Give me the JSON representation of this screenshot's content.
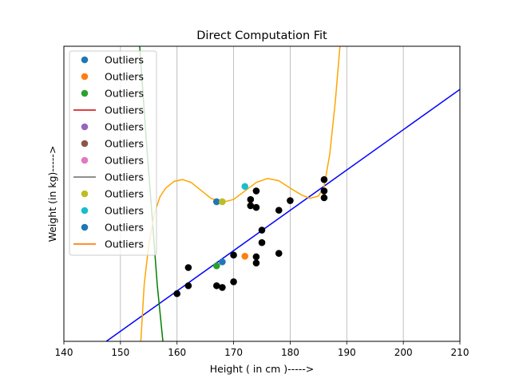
{
  "chart_data": {
    "type": "scatter",
    "title": "Direct Computation Fit",
    "xlabel": "Height ( in cm )----->",
    "ylabel": "Weight (in kg)----->",
    "xlim": [
      140,
      210
    ],
    "ylim": [
      30,
      82
    ],
    "xticks": [
      140,
      150,
      160,
      170,
      180,
      190,
      200,
      210
    ],
    "xtick_labels": [
      "140",
      "150",
      "160",
      "170",
      "180",
      "190",
      "200",
      "210"
    ],
    "yticks_visible": false,
    "grid": "vertical lines only",
    "legend": {
      "position": "top-left",
      "entries": [
        {
          "label": "Outliers",
          "kind": "marker",
          "color": "#1f77b4"
        },
        {
          "label": "Outliers",
          "kind": "marker",
          "color": "#ff7f0e"
        },
        {
          "label": "Outliers",
          "kind": "marker",
          "color": "#2ca02c"
        },
        {
          "label": "Outliers",
          "kind": "line",
          "color": "#d62728"
        },
        {
          "label": "Outliers",
          "kind": "marker",
          "color": "#9467bd"
        },
        {
          "label": "Outliers",
          "kind": "marker",
          "color": "#8c564b"
        },
        {
          "label": "Outliers",
          "kind": "marker",
          "color": "#e377c2"
        },
        {
          "label": "Outliers",
          "kind": "line",
          "color": "#7f7f7f"
        },
        {
          "label": "Outliers",
          "kind": "marker",
          "color": "#bcbd22"
        },
        {
          "label": "Outliers",
          "kind": "marker",
          "color": "#17becf"
        },
        {
          "label": "Outliers",
          "kind": "marker",
          "color": "#1f77b4"
        },
        {
          "label": "Outliers",
          "kind": "line",
          "color": "#ff7f0e"
        }
      ]
    },
    "points": [
      {
        "x": 160,
        "y": 38.4,
        "color": "#000000"
      },
      {
        "x": 162,
        "y": 39.8,
        "color": "#000000"
      },
      {
        "x": 162,
        "y": 43.0,
        "color": "#000000"
      },
      {
        "x": 167,
        "y": 39.8,
        "color": "#000000"
      },
      {
        "x": 168,
        "y": 39.5,
        "color": "#000000"
      },
      {
        "x": 170,
        "y": 40.5,
        "color": "#000000"
      },
      {
        "x": 170,
        "y": 45.2,
        "color": "#000000"
      },
      {
        "x": 173,
        "y": 53.9,
        "color": "#000000"
      },
      {
        "x": 173,
        "y": 55.0,
        "color": "#000000"
      },
      {
        "x": 174,
        "y": 43.8,
        "color": "#000000"
      },
      {
        "x": 174,
        "y": 44.9,
        "color": "#000000"
      },
      {
        "x": 174,
        "y": 53.6,
        "color": "#000000"
      },
      {
        "x": 174,
        "y": 56.5,
        "color": "#000000"
      },
      {
        "x": 175,
        "y": 47.4,
        "color": "#000000"
      },
      {
        "x": 175,
        "y": 49.6,
        "color": "#000000"
      },
      {
        "x": 178,
        "y": 45.5,
        "color": "#000000"
      },
      {
        "x": 178,
        "y": 53.1,
        "color": "#000000"
      },
      {
        "x": 180,
        "y": 54.8,
        "color": "#000000"
      },
      {
        "x": 186,
        "y": 55.3,
        "color": "#000000"
      },
      {
        "x": 186,
        "y": 56.5,
        "color": "#000000"
      },
      {
        "x": 186,
        "y": 58.5,
        "color": "#000000"
      },
      {
        "x": 167,
        "y": 54.6,
        "color": "#1f77b4"
      },
      {
        "x": 168,
        "y": 54.6,
        "color": "#bcbd22"
      },
      {
        "x": 172,
        "y": 45.0,
        "color": "#ff7f0e"
      },
      {
        "x": 167,
        "y": 43.3,
        "color": "#2ca02c"
      },
      {
        "x": 168,
        "y": 44.0,
        "color": "#1f77b4"
      },
      {
        "x": 172,
        "y": 57.3,
        "color": "#17becf"
      }
    ],
    "lines": [
      {
        "kind": "linear-fit",
        "color": "#0000ff",
        "x_start": 147.5,
        "y_start": 30,
        "x_end": 210,
        "y_end": 74.4
      },
      {
        "kind": "curve",
        "color": "#008000",
        "note": "steep curve near x 153-158"
      },
      {
        "kind": "curve",
        "color": "#ffa500",
        "note": "high-degree polynomial fit"
      }
    ]
  }
}
